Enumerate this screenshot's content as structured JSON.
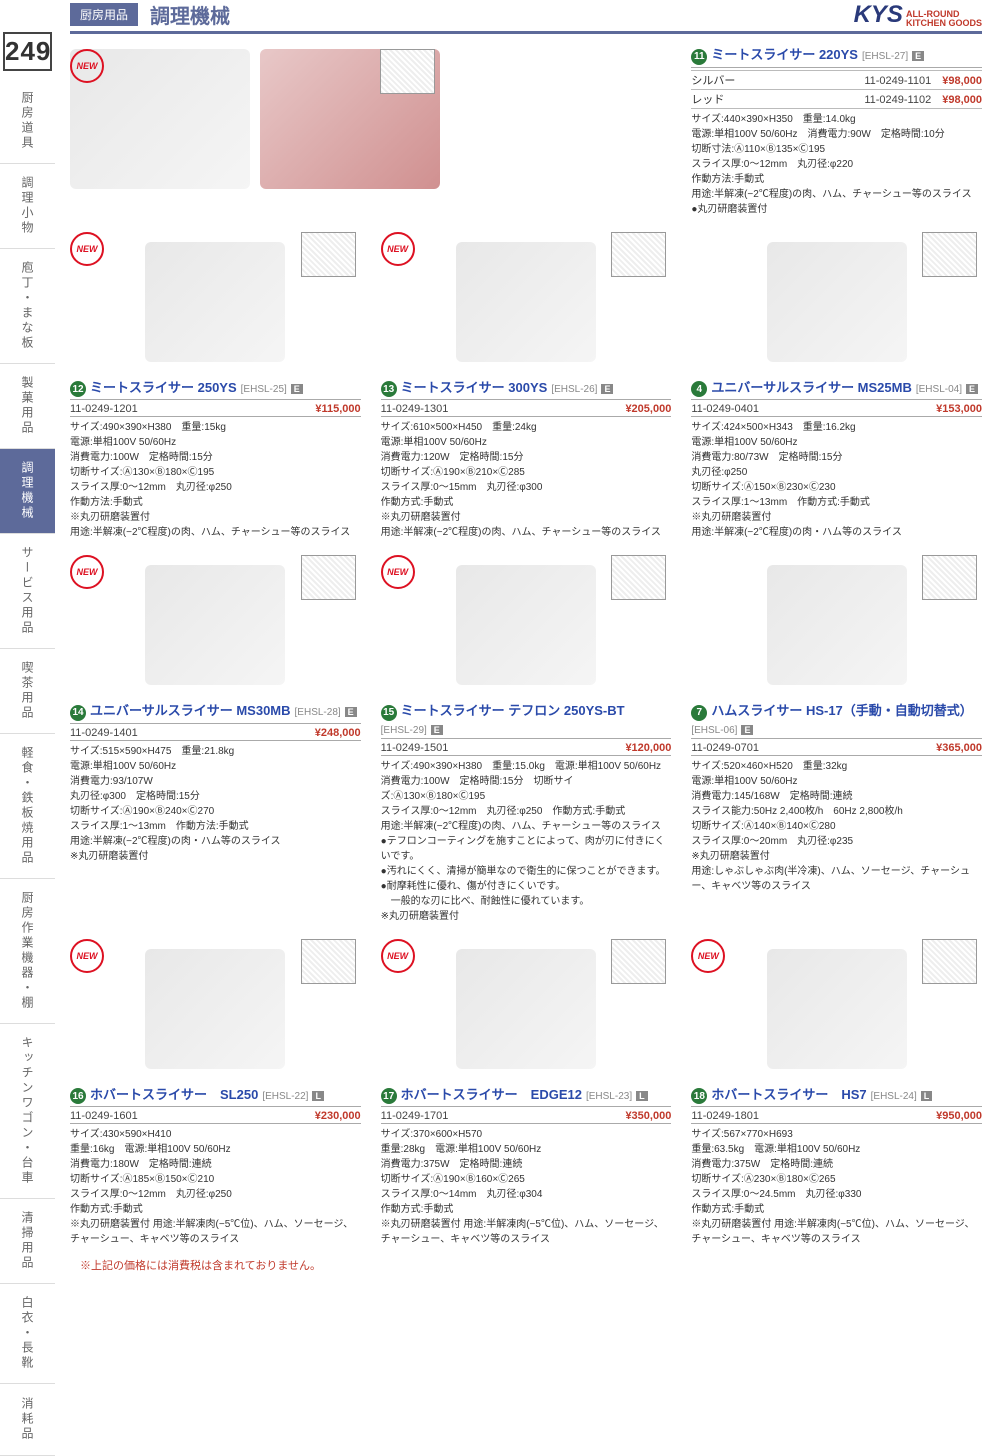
{
  "header": {
    "category_badge": "厨房用品",
    "page_number": "249",
    "category_title": "調理機械",
    "brand_main": "KYS",
    "brand_sub1": "ALL-ROUND",
    "brand_sub2": "KITCHEN GOODS"
  },
  "sidebar_tabs": [
    "厨房道具",
    "調理小物",
    "庖丁・まな板",
    "製菓用品",
    "調理機械",
    "サービス用品",
    "喫茶用品",
    "軽食・鉄板焼用品",
    "厨房作業機器・棚",
    "キッチンワゴン・台車",
    "清掃用品",
    "白衣・長靴",
    "消耗品"
  ],
  "sidebar_active_index": 4,
  "new_label": "NEW",
  "products": {
    "p11": {
      "num": "11",
      "name": "ミートスライサー 220YS",
      "code": "[EHSL-27]",
      "badge": "E",
      "variants": [
        {
          "label": "シルバー",
          "sku": "11-0249-1101",
          "price": "¥98,000"
        },
        {
          "label": "レッド",
          "sku": "11-0249-1102",
          "price": "¥98,000"
        }
      ],
      "specs": "サイズ:440×390×H350　重量:14.0kg\n電源:単相100V 50/60Hz　消費電力:90W　定格時間:10分\n切断寸法:Ⓐ110×Ⓑ135×Ⓒ195\nスライス厚:0～12mm　丸刃径:φ220\n作動方法:手動式\n用途:半解凍(−2℃程度)の肉、ハム、チャーシュー等のスライス\n●丸刃研磨装置付"
    },
    "p12": {
      "num": "12",
      "name": "ミートスライサー 250YS",
      "code": "[EHSL-25]",
      "badge": "E",
      "sku": "11-0249-1201",
      "price": "¥115,000",
      "specs": "サイズ:490×390×H380　重量:15kg\n電源:単相100V 50/60Hz\n消費電力:100W　定格時間:15分\n切断サイズ:Ⓐ130×Ⓑ180×Ⓒ195\nスライス厚:0～12mm　丸刃径:φ250\n作動方法:手動式\n※丸刃研磨装置付\n用途:半解凍(−2℃程度)の肉、ハム、チャーシュー等のスライス"
    },
    "p13": {
      "num": "13",
      "name": "ミートスライサー 300YS",
      "code": "[EHSL-26]",
      "badge": "E",
      "sku": "11-0249-1301",
      "price": "¥205,000",
      "specs": "サイズ:610×500×H450　重量:24kg\n電源:単相100V 50/60Hz\n消費電力:120W　定格時間:15分\n切断サイズ:Ⓐ190×Ⓑ210×Ⓒ285\nスライス厚:0～15mm　丸刃径:φ300\n作動方式:手動式\n※丸刃研磨装置付\n用途:半解凍(−2℃程度)の肉、ハム、チャーシュー等のスライス"
    },
    "p4": {
      "num": "4",
      "name": "ユニバーサルスライサー MS25MB",
      "code": "[EHSL-04]",
      "badge": "E",
      "sku": "11-0249-0401",
      "price": "¥153,000",
      "specs": "サイズ:424×500×H343　重量:16.2kg\n電源:単相100V 50/60Hz\n消費電力:80/73W　定格時間:15分\n丸刃径:φ250\n切断サイズ:Ⓐ150×Ⓑ230×Ⓒ230\nスライス厚:1～13mm　作動方式:手動式\n※丸刃研磨装置付\n用途:半解凍(−2℃程度)の肉・ハム等のスライス"
    },
    "p14": {
      "num": "14",
      "name": "ユニバーサルスライサー MS30MB",
      "code": "[EHSL-28]",
      "badge": "E",
      "sku": "11-0249-1401",
      "price": "¥248,000",
      "specs": "サイズ:515×590×H475　重量:21.8kg\n電源:単相100V 50/60Hz\n消費電力:93/107W\n丸刃径:φ300　定格時間:15分\n切断サイズ:Ⓐ190×Ⓑ240×Ⓒ270\nスライス厚:1～13mm　作動方法:手動式\n用途:半解凍(−2℃程度)の肉・ハム等のスライス\n※丸刃研磨装置付"
    },
    "p15": {
      "num": "15",
      "name": "ミートスライサー テフロン 250YS-BT",
      "code": "[EHSL-29]",
      "badge": "E",
      "sku": "11-0249-1501",
      "price": "¥120,000",
      "specs": "サイズ:490×390×H380　重量:15.0kg　電源:単相100V 50/60Hz\n消費電力:100W　定格時間:15分　切断サイズ:Ⓐ130×Ⓑ180×Ⓒ195\nスライス厚:0～12mm　丸刃径:φ250　作動方式:手動式\n用途:半解凍(−2℃程度)の肉、ハム、チャーシュー等のスライス\n●テフロンコーティングを施すことによって、肉が刃に付きにくいです。\n●汚れにくく、清掃が簡単なので衛生的に保つことができます。\n●耐摩耗性に優れ、傷が付きにくいです。\n　一般的な刃に比べ、耐蝕性に優れています。\n※丸刃研磨装置付"
    },
    "p7": {
      "num": "7",
      "name": "ハムスライサー HS-17（手動・自動切替式）",
      "code": "[EHSL-06]",
      "badge": "E",
      "sku": "11-0249-0701",
      "price": "¥365,000",
      "specs": "サイズ:520×460×H520　重量:32kg\n電源:単相100V 50/60Hz\n消費電力:145/168W　定格時間:連続\nスライス能力:50Hz 2,400枚/h　60Hz 2,800枚/h\n切断サイズ:Ⓐ140×Ⓑ140×Ⓒ280\nスライス厚:0～20mm　丸刃径:φ235\n※丸刃研磨装置付\n用途:しゃぶしゃぶ肉(半冷凍)、ハム、ソーセージ、チャーシュー、キャベツ等のスライス"
    },
    "p16": {
      "num": "16",
      "name": "ホバートスライサー　SL250",
      "code": "[EHSL-22]",
      "badge": "L",
      "sku": "11-0249-1601",
      "price": "¥230,000",
      "specs": "サイズ:430×590×H410\n重量:16kg　電源:単相100V 50/60Hz\n消費電力:180W　定格時間:連続\n切断サイズ:Ⓐ185×Ⓑ150×Ⓒ210\nスライス厚:0～12mm　丸刃径:φ250\n作動方式:手動式\n※丸刃研磨装置付 用途:半解凍肉(−5℃位)、ハム、ソーセージ、チャーシュー、キャベツ等のスライス"
    },
    "p17": {
      "num": "17",
      "name": "ホバートスライサー　EDGE12",
      "code": "[EHSL-23]",
      "badge": "L",
      "sku": "11-0249-1701",
      "price": "¥350,000",
      "specs": "サイズ:370×600×H570\n重量:28kg　電源:単相100V 50/60Hz\n消費電力:375W　定格時間:連続\n切断サイズ:Ⓐ190×Ⓑ160×Ⓒ265\nスライス厚:0～14mm　丸刃径:φ304\n作動方式:手動式\n※丸刃研磨装置付 用途:半解凍肉(−5℃位)、ハム、ソーセージ、チャーシュー、キャベツ等のスライス"
    },
    "p18": {
      "num": "18",
      "name": "ホバートスライサー　HS7",
      "code": "[EHSL-24]",
      "badge": "L",
      "sku": "11-0249-1801",
      "price": "¥950,000",
      "specs": "サイズ:567×770×H693\n重量:63.5kg　電源:単相100V 50/60Hz\n消費電力:375W　定格時間:連続\n切断サイズ:Ⓐ230×Ⓑ180×Ⓒ265\nスライス厚:0～24.5mm　丸刃径:φ330\n作動方式:手動式\n※丸刃研磨装置付 用途:半解凍肉(−5℃位)、ハム、ソーセージ、チャーシュー、キャベツ等のスライス"
    }
  },
  "footer_note": "※上記の価格には消費税は含まれておりません。"
}
